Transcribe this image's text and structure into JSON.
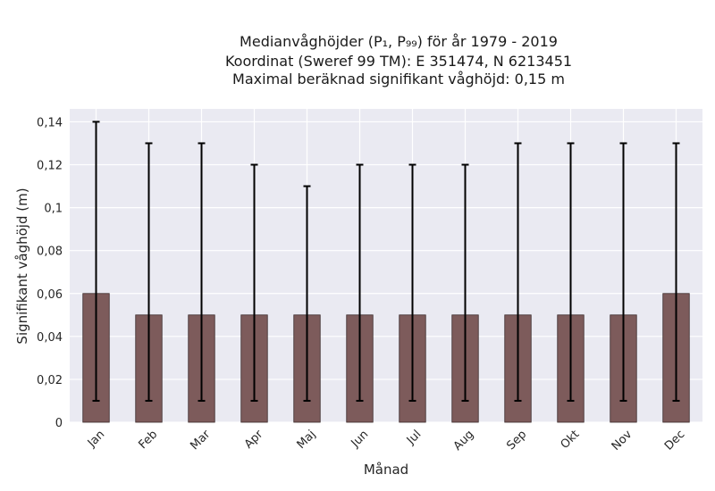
{
  "chart_data": {
    "type": "bar",
    "title_lines": [
      "Medianvåghöjder (P₁, P₉₉) för år 1979 - 2019",
      "Koordinat (Sweref 99 TM): E 351474, N 6213451",
      "Maximal beräknad signifikant våghöjd: 0,15 m"
    ],
    "xlabel": "Månad",
    "ylabel": "Signifikant våghöjd (m)",
    "categories": [
      "Jan",
      "Feb",
      "Mar",
      "Apr",
      "Maj",
      "Jun",
      "Jul",
      "Aug",
      "Sep",
      "Okt",
      "Nov",
      "Dec"
    ],
    "values": [
      0.06,
      0.05,
      0.05,
      0.05,
      0.05,
      0.05,
      0.05,
      0.05,
      0.05,
      0.05,
      0.05,
      0.06
    ],
    "p1": [
      0.01,
      0.01,
      0.01,
      0.01,
      0.01,
      0.01,
      0.01,
      0.01,
      0.01,
      0.01,
      0.01,
      0.01
    ],
    "p99": [
      0.14,
      0.13,
      0.13,
      0.12,
      0.11,
      0.12,
      0.12,
      0.12,
      0.13,
      0.13,
      0.13,
      0.13
    ],
    "ylim": [
      0,
      0.146
    ],
    "yticks": [
      0,
      0.02,
      0.04,
      0.06,
      0.08,
      0.1,
      0.12,
      0.14
    ],
    "ytick_labels": [
      "0",
      "0,02",
      "0,04",
      "0,06",
      "0,08",
      "0,1",
      "0,12",
      "0,14"
    ],
    "grid": true,
    "colors": {
      "bar": "#7d5b5b",
      "bar_edge": "#3a2a2a",
      "errorbar": "#000000",
      "plot_background": "#eaeaf2",
      "grid": "#ffffff"
    }
  }
}
